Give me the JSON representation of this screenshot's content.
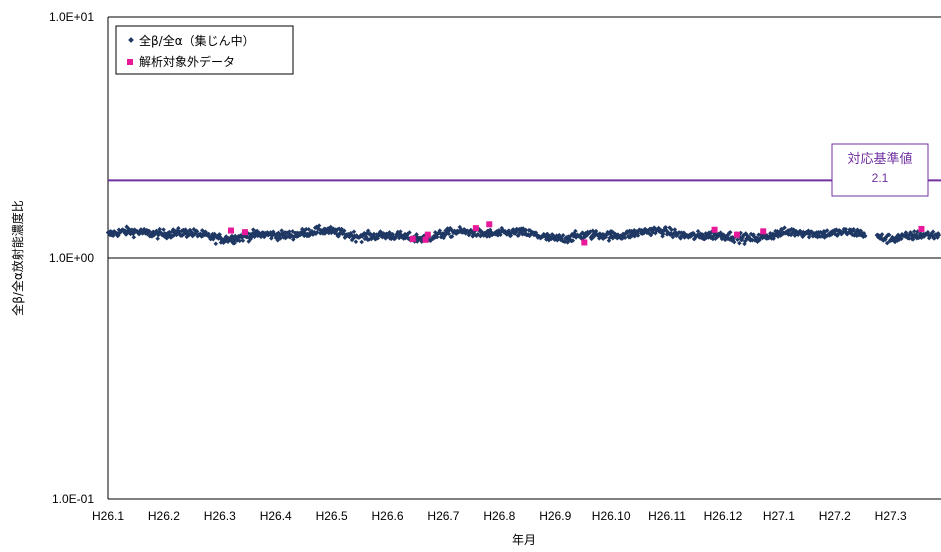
{
  "chart_data": {
    "type": "scatter",
    "ylabel": "全β/全α放射能濃度比",
    "xlabel": "年月",
    "y_scale": "log",
    "ylim": [
      0.1,
      10
    ],
    "y_ticks": [
      "1.0E+01",
      "1.0E+00",
      "1.0E-01"
    ],
    "x_ticks": [
      "H26.1",
      "H26.2",
      "H26.3",
      "H26.4",
      "H26.5",
      "H26.6",
      "H26.7",
      "H26.8",
      "H26.9",
      "H26.10",
      "H26.11",
      "H26.12",
      "H27.1",
      "H27.2",
      "H27.3"
    ],
    "gridlines": [
      1.0
    ],
    "legend": {
      "placement": "top-left",
      "entries": [
        {
          "name": "全β/全α（集じん中）",
          "marker": "diamond",
          "color": "#1f3864"
        },
        {
          "name": "解析対象外データ",
          "marker": "square",
          "color": "#e8189a"
        }
      ]
    },
    "reference_line": {
      "label": "対応基準値",
      "value": 2.1,
      "color": "#7030a0"
    },
    "series": [
      {
        "name": "全β/全α（集じん中）",
        "marker": "diamond",
        "color": "#1f3864",
        "mean": 1.25,
        "range": [
          1.1,
          1.55
        ],
        "x_range": [
          0.0,
          15.0
        ],
        "gap": [
          13.55,
          13.75
        ]
      },
      {
        "name": "解析対象外データ",
        "marker": "square",
        "color": "#e8189a",
        "points": [
          {
            "x": 2.2,
            "y": 1.3
          },
          {
            "x": 2.45,
            "y": 1.28
          },
          {
            "x": 5.45,
            "y": 1.2
          },
          {
            "x": 5.68,
            "y": 1.19
          },
          {
            "x": 5.72,
            "y": 1.25
          },
          {
            "x": 6.58,
            "y": 1.33
          },
          {
            "x": 6.82,
            "y": 1.38
          },
          {
            "x": 8.52,
            "y": 1.16
          },
          {
            "x": 10.85,
            "y": 1.31
          },
          {
            "x": 11.25,
            "y": 1.25
          },
          {
            "x": 11.72,
            "y": 1.29
          },
          {
            "x": 14.55,
            "y": 1.32
          }
        ]
      }
    ]
  }
}
